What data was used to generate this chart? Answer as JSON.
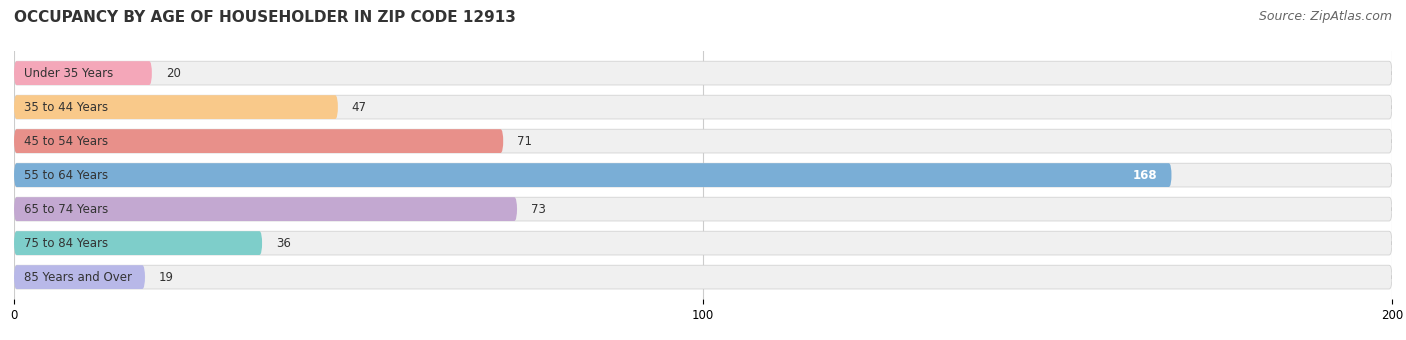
{
  "title": "OCCUPANCY BY AGE OF HOUSEHOLDER IN ZIP CODE 12913",
  "source": "Source: ZipAtlas.com",
  "categories": [
    "Under 35 Years",
    "35 to 44 Years",
    "45 to 54 Years",
    "55 to 64 Years",
    "65 to 74 Years",
    "75 to 84 Years",
    "85 Years and Over"
  ],
  "values": [
    20,
    47,
    71,
    168,
    73,
    36,
    19
  ],
  "bar_colors": [
    "#f4a7b9",
    "#f9c98a",
    "#e8908a",
    "#7aaed6",
    "#c3a8d1",
    "#7ececa",
    "#b8b8e8"
  ],
  "bar_bg_color": "#f0f0f0",
  "xlim": [
    0,
    200
  ],
  "xticks": [
    0,
    100,
    200
  ],
  "title_fontsize": 11,
  "source_fontsize": 9,
  "label_fontsize": 8.5,
  "value_fontsize": 8.5,
  "bar_height": 0.68,
  "background_color": "#ffffff",
  "grid_color": "#cccccc",
  "highlight_index": 3
}
